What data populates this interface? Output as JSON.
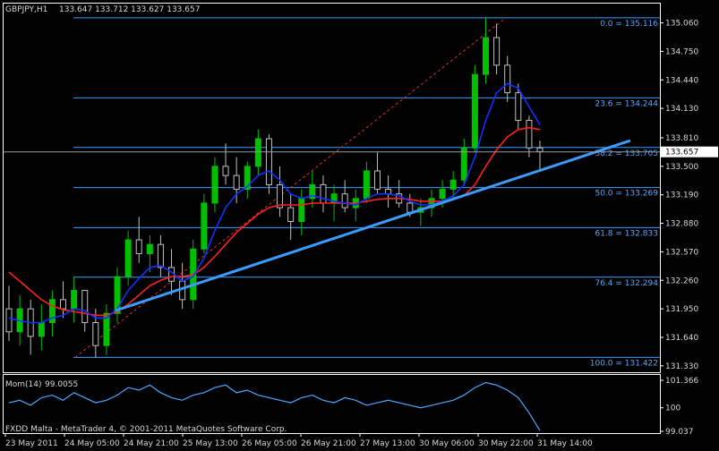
{
  "header": {
    "symbol_text": "GBPJPY,H1",
    "ohlc_text": "133.647 133.712 133.627 133.657"
  },
  "footer": {
    "watermark": "FXDD Malta - MetaTrader 4, © 2001-2011 MetaQuotes Software Corp."
  },
  "colors": {
    "background": "#000000",
    "frame": "#ffffff",
    "bull": "#00c000",
    "bear": "#c0c0c0",
    "ma_fast": "#1030ff",
    "ma_slow": "#ff2020",
    "trendline": "#3a9cff",
    "fib": "#3aa0ff",
    "fib_diag": "#e03020",
    "momentum": "#4aa8ff",
    "price_tag": "#ffffff"
  },
  "chart_data": {
    "type": "candlestick",
    "symbol": "GBPJPY",
    "timeframe": "H1",
    "ylim": [
      131.26,
      135.27
    ],
    "current_price": 133.657,
    "y_ticks": [
      135.06,
      134.75,
      134.44,
      134.13,
      133.81,
      133.5,
      133.19,
      132.88,
      132.57,
      132.26,
      131.95,
      131.64,
      131.33
    ],
    "x_ticks": [
      "23 May 2011",
      "24 May 05:00",
      "24 May 21:00",
      "25 May 13:00",
      "26 May 05:00",
      "26 May 21:00",
      "27 May 13:00",
      "30 May 06:00",
      "30 May 22:00",
      "31 May 14:00"
    ],
    "fibonacci": [
      {
        "label": "0.0",
        "price": 135.116
      },
      {
        "label": "23.6",
        "price": 134.244
      },
      {
        "label": "38.2",
        "price": 133.705
      },
      {
        "label": "50.0",
        "price": 133.269
      },
      {
        "label": "61.8",
        "price": 132.833
      },
      {
        "label": "76.4",
        "price": 132.294
      },
      {
        "label": "100.0",
        "price": 131.422
      }
    ],
    "trendline": {
      "from": [
        0.17,
        131.93
      ],
      "to": [
        0.955,
        133.78
      ]
    },
    "candles_approx": [
      [
        131.95,
        132.2,
        131.6,
        131.7
      ],
      [
        131.7,
        132.1,
        131.55,
        131.95
      ],
      [
        131.95,
        132.05,
        131.45,
        131.65
      ],
      [
        131.65,
        132.0,
        131.5,
        131.8
      ],
      [
        131.8,
        132.15,
        131.65,
        132.05
      ],
      [
        132.05,
        132.25,
        131.85,
        131.95
      ],
      [
        131.95,
        132.3,
        131.8,
        132.15
      ],
      [
        132.15,
        132.1,
        131.7,
        131.8
      ],
      [
        131.8,
        131.95,
        131.42,
        131.55
      ],
      [
        131.55,
        132.0,
        131.45,
        131.9
      ],
      [
        131.9,
        132.4,
        131.8,
        132.3
      ],
      [
        132.3,
        132.8,
        132.2,
        132.7
      ],
      [
        132.7,
        132.95,
        132.45,
        132.55
      ],
      [
        132.55,
        132.75,
        132.35,
        132.65
      ],
      [
        132.65,
        132.75,
        132.3,
        132.4
      ],
      [
        132.4,
        132.6,
        132.1,
        132.25
      ],
      [
        132.25,
        132.45,
        131.95,
        132.05
      ],
      [
        132.05,
        132.7,
        131.95,
        132.6
      ],
      [
        132.6,
        133.2,
        132.55,
        133.1
      ],
      [
        133.1,
        133.6,
        133.0,
        133.5
      ],
      [
        133.5,
        133.75,
        133.3,
        133.4
      ],
      [
        133.4,
        133.6,
        133.1,
        133.25
      ],
      [
        133.25,
        133.55,
        133.15,
        133.5
      ],
      [
        133.5,
        133.9,
        133.4,
        133.8
      ],
      [
        133.8,
        133.85,
        133.2,
        133.3
      ],
      [
        133.3,
        133.5,
        132.95,
        133.05
      ],
      [
        133.05,
        133.2,
        132.7,
        132.9
      ],
      [
        132.9,
        133.25,
        132.75,
        133.15
      ],
      [
        133.15,
        133.45,
        133.05,
        133.3
      ],
      [
        133.3,
        133.4,
        133.0,
        133.1
      ],
      [
        133.1,
        133.3,
        132.9,
        133.2
      ],
      [
        133.2,
        133.35,
        133.0,
        133.05
      ],
      [
        133.05,
        133.25,
        132.9,
        133.15
      ],
      [
        133.15,
        133.55,
        133.1,
        133.45
      ],
      [
        133.45,
        133.65,
        133.2,
        133.25
      ],
      [
        133.25,
        133.4,
        133.05,
        133.2
      ],
      [
        133.2,
        133.35,
        133.05,
        133.1
      ],
      [
        133.1,
        133.2,
        132.95,
        133.0
      ],
      [
        133.0,
        133.15,
        132.85,
        133.05
      ],
      [
        133.05,
        133.25,
        132.95,
        133.15
      ],
      [
        133.15,
        133.35,
        133.05,
        133.25
      ],
      [
        133.25,
        133.45,
        133.15,
        133.35
      ],
      [
        133.35,
        133.8,
        133.3,
        133.7
      ],
      [
        133.7,
        134.6,
        133.65,
        134.5
      ],
      [
        134.5,
        135.11,
        134.4,
        134.9
      ],
      [
        134.9,
        135.05,
        134.5,
        134.6
      ],
      [
        134.6,
        134.7,
        134.2,
        134.3
      ],
      [
        134.3,
        134.4,
        133.9,
        134.0
      ],
      [
        134.0,
        134.05,
        133.6,
        133.7
      ],
      [
        133.7,
        133.78,
        133.45,
        133.66
      ]
    ],
    "ma_fast_approx": [
      131.85,
      131.82,
      131.8,
      131.8,
      131.85,
      131.88,
      131.95,
      131.93,
      131.85,
      131.85,
      131.95,
      132.15,
      132.28,
      132.4,
      132.42,
      132.35,
      132.25,
      132.3,
      132.5,
      132.8,
      133.05,
      133.2,
      133.28,
      133.4,
      133.45,
      133.35,
      133.2,
      133.15,
      133.18,
      133.15,
      133.12,
      133.1,
      133.08,
      133.15,
      133.2,
      133.2,
      133.18,
      133.12,
      133.08,
      133.08,
      133.12,
      133.18,
      133.3,
      133.6,
      134.0,
      134.3,
      134.4,
      134.35,
      134.15,
      133.95
    ],
    "ma_slow_approx": [
      132.35,
      132.25,
      132.15,
      132.05,
      131.98,
      131.94,
      131.92,
      131.9,
      131.88,
      131.88,
      131.92,
      132.0,
      132.1,
      132.2,
      132.26,
      132.3,
      132.3,
      132.32,
      132.4,
      132.52,
      132.65,
      132.78,
      132.88,
      132.98,
      133.05,
      133.08,
      133.08,
      133.08,
      133.1,
      133.1,
      133.1,
      133.1,
      133.1,
      133.12,
      133.14,
      133.15,
      133.15,
      133.14,
      133.12,
      133.12,
      133.12,
      133.14,
      133.18,
      133.3,
      133.5,
      133.68,
      133.82,
      133.9,
      133.92,
      133.9
    ],
    "indicator": {
      "name": "Mom(14)",
      "value_text": "99.0055",
      "ylim": [
        99.0,
        101.3
      ],
      "y_ticks": [
        101.366,
        100.0,
        99.037
      ],
      "values_approx": [
        100.2,
        100.3,
        100.1,
        100.4,
        100.5,
        100.3,
        100.6,
        100.4,
        100.2,
        100.3,
        100.5,
        100.8,
        100.7,
        100.9,
        100.6,
        100.4,
        100.3,
        100.5,
        100.6,
        100.8,
        100.9,
        100.6,
        100.7,
        100.5,
        100.4,
        100.3,
        100.2,
        100.4,
        100.5,
        100.3,
        100.2,
        100.4,
        100.3,
        100.1,
        100.2,
        100.3,
        100.2,
        100.1,
        100.0,
        100.1,
        100.2,
        100.3,
        100.5,
        100.8,
        101.0,
        100.9,
        100.7,
        100.4,
        99.8,
        99.1
      ]
    }
  }
}
